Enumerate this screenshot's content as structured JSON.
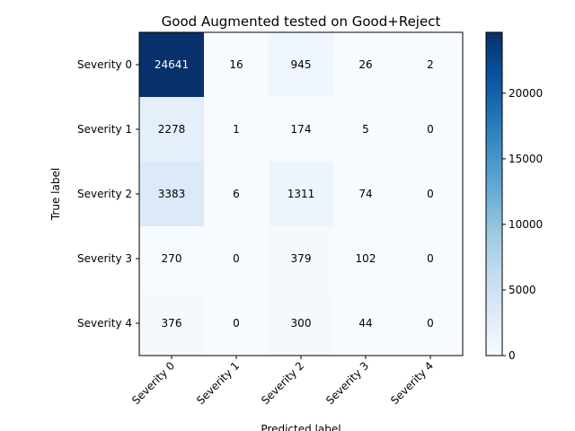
{
  "chart_data": {
    "type": "heatmap",
    "title": "Good Augmented tested on Good+Reject",
    "xlabel": "Predicted label",
    "ylabel": "True label",
    "x_categories": [
      "Severity 0",
      "Severity 1",
      "Severity 2",
      "Severity 3",
      "Severity 4"
    ],
    "y_categories": [
      "Severity 0",
      "Severity 1",
      "Severity 2",
      "Severity 3",
      "Severity 4"
    ],
    "matrix": [
      [
        24641,
        16,
        945,
        26,
        2
      ],
      [
        2278,
        1,
        174,
        5,
        0
      ],
      [
        3383,
        6,
        1311,
        74,
        0
      ],
      [
        270,
        0,
        379,
        102,
        0
      ],
      [
        376,
        0,
        300,
        44,
        0
      ]
    ],
    "colormap": "Blues",
    "colorbar": {
      "min": 0,
      "max": 24641,
      "ticks": [
        0,
        5000,
        10000,
        15000,
        20000
      ]
    },
    "colors": {
      "low": "#f7fbff",
      "high": "#08306b",
      "text_dark": "#000000",
      "text_light": "#ffffff"
    }
  }
}
